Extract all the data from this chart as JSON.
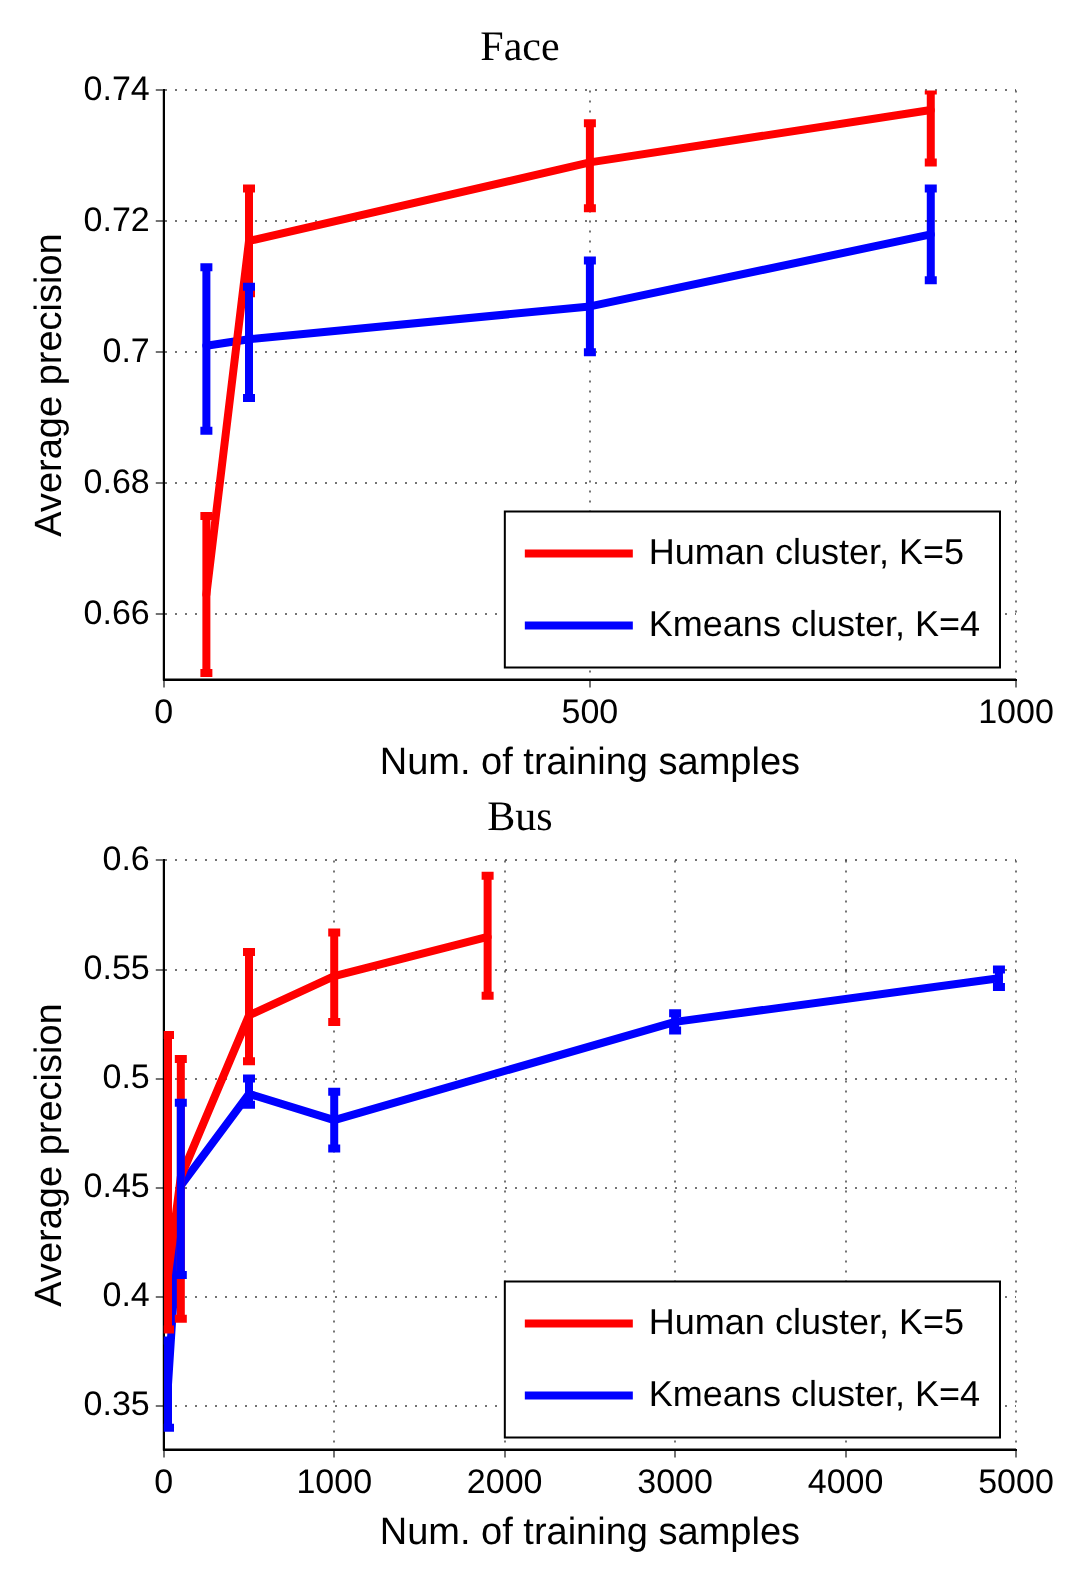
{
  "chart_data": [
    {
      "type": "line",
      "title": "Face",
      "xlabel": "Num. of training samples",
      "ylabel": "Average precision",
      "xlim": [
        0,
        1000
      ],
      "xticks": [
        0,
        500,
        1000
      ],
      "ylim": [
        0.65,
        0.74
      ],
      "yticks": [
        0.66,
        0.68,
        0.7,
        0.72,
        0.74
      ],
      "grid": true,
      "legend": "bottom right",
      "marker": "none",
      "line_style": "solid",
      "series": [
        {
          "name": "Human cluster, K=5",
          "color": "#ff0000",
          "x": [
            50,
            100,
            500,
            900
          ],
          "values": [
            0.663,
            0.717,
            0.729,
            0.737
          ],
          "errors": [
            [
              0.651,
              0.675
            ],
            [
              0.709,
              0.725
            ],
            [
              0.722,
              0.735
            ],
            [
              0.729,
              0.74
            ]
          ]
        },
        {
          "name": "Kmeans cluster, K=4",
          "color": "#0000ff",
          "x": [
            50,
            100,
            500,
            900
          ],
          "values": [
            0.701,
            0.702,
            0.707,
            0.718
          ],
          "errors": [
            [
              0.688,
              0.713
            ],
            [
              0.693,
              0.71
            ],
            [
              0.7,
              0.714
            ],
            [
              0.711,
              0.725
            ]
          ]
        }
      ]
    },
    {
      "type": "line",
      "title": "Bus",
      "xlabel": "Num. of training samples",
      "ylabel": "Average precision",
      "xlim": [
        0,
        5000
      ],
      "xticks": [
        0,
        1000,
        2000,
        3000,
        4000,
        5000
      ],
      "ylim": [
        0.33,
        0.6
      ],
      "yticks": [
        0.35,
        0.4,
        0.45,
        0.5,
        0.55,
        0.6
      ],
      "grid": true,
      "legend": "bottom right",
      "marker": "none",
      "line_style": "solid",
      "series": [
        {
          "name": "Human cluster, K=5",
          "color": "#ff0000",
          "x": [
            25,
            100,
            500,
            1000,
            1900
          ],
          "values": [
            0.41,
            0.455,
            0.529,
            0.547,
            0.565
          ],
          "errors": [
            [
              0.385,
              0.52
            ],
            [
              0.39,
              0.509
            ],
            [
              0.508,
              0.558
            ],
            [
              0.526,
              0.567
            ],
            [
              0.538,
              0.593
            ]
          ]
        },
        {
          "name": "Kmeans cluster, K=4",
          "color": "#0000ff",
          "x": [
            25,
            100,
            500,
            1000,
            3000,
            4900
          ],
          "values": [
            0.36,
            0.451,
            0.493,
            0.481,
            0.526,
            0.546
          ],
          "errors": [
            [
              0.34,
              0.38
            ],
            [
              0.41,
              0.489
            ],
            [
              0.488,
              0.5
            ],
            [
              0.468,
              0.494
            ],
            [
              0.522,
              0.53
            ],
            [
              0.542,
              0.55
            ]
          ]
        }
      ]
    }
  ]
}
